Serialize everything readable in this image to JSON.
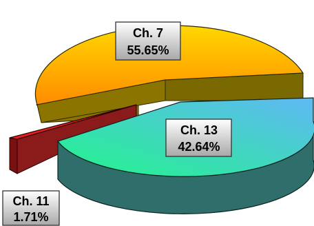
{
  "chart_data": {
    "type": "pie",
    "style": "3d-exploded",
    "legend": "none",
    "slices": [
      {
        "name": "Ch. 7",
        "label": "55.65%",
        "value": 55.65,
        "color_top_start": "#FF8C00",
        "color_top_end": "#FFD700",
        "color_side": "#8B7500"
      },
      {
        "name": "Ch. 13",
        "label": "42.64%",
        "value": 42.64,
        "color_top_start": "#22F58A",
        "color_top_end": "#5FB8F5",
        "color_side": "#2F6E6A"
      },
      {
        "name": "Ch. 11",
        "label": "1.71%",
        "value": 1.71,
        "color_top_start": "#FF3B3B",
        "color_top_end": "#D40000",
        "color_side": "#7A1010"
      }
    ]
  }
}
